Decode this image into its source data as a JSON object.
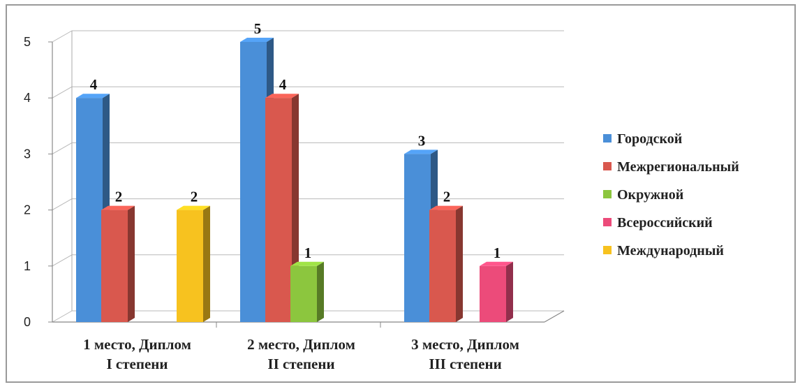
{
  "chart_data": {
    "type": "bar",
    "categories": [
      [
        "1 место, Диплом",
        "I степени"
      ],
      [
        "2 место, Диплом",
        "II степени"
      ],
      [
        "3 место, Диплом",
        "III степени"
      ]
    ],
    "series": [
      {
        "name": "Городской",
        "color": "#4a8fd8",
        "values": [
          4,
          5,
          3
        ]
      },
      {
        "name": "Межрегиональный",
        "color": "#d9584e",
        "values": [
          2,
          4,
          2
        ]
      },
      {
        "name": "Окружной",
        "color": "#8cc63e",
        "values": [
          null,
          1,
          null
        ]
      },
      {
        "name": "Всероссийский",
        "color": "#ec4b7a",
        "values": [
          null,
          null,
          1
        ]
      },
      {
        "name": "Международный",
        "color": "#f7c21f",
        "values": [
          2,
          null,
          null
        ]
      }
    ],
    "yticks": [
      0,
      1,
      2,
      3,
      4,
      5
    ],
    "ylim": [
      0,
      5
    ],
    "grid": true,
    "legend_position": "right",
    "title": "",
    "xlabel": "",
    "ylabel": ""
  }
}
